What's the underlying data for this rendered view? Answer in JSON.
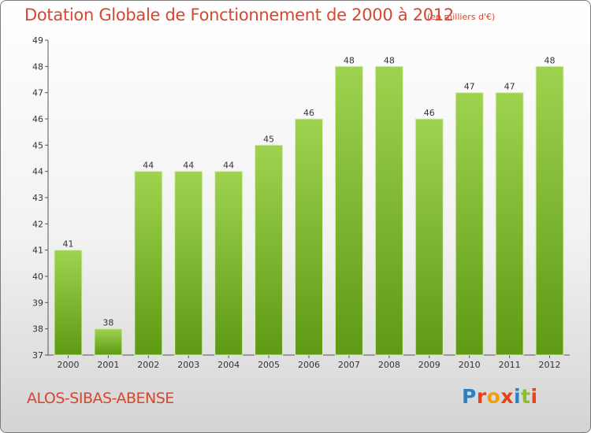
{
  "header": {
    "title": "Dotation Globale de Fonctionnement de 2000 à 2012",
    "units": "(en milliers d'€)"
  },
  "footer": {
    "commune": "ALOS-SIBAS-ABENSE",
    "logo_text": "Proxiti"
  },
  "colors": {
    "title": "#d7462f",
    "bar_top": "#9fd34f",
    "bar_bottom": "#5e9a14",
    "logo": [
      "#2f7fc1",
      "#e8411b",
      "#f2a000",
      "#e8411b",
      "#2f7fc1",
      "#8bbf2b",
      "#e8411b"
    ]
  },
  "chart_data": {
    "type": "bar",
    "title": "Dotation Globale de Fonctionnement de 2000 à 2012",
    "subtitle": "(en milliers d'€)",
    "categories": [
      "2000",
      "2001",
      "2002",
      "2003",
      "2004",
      "2005",
      "2006",
      "2007",
      "2008",
      "2009",
      "2010",
      "2011",
      "2012"
    ],
    "values": [
      41,
      38,
      44,
      44,
      44,
      45,
      46,
      48,
      48,
      46,
      47,
      47,
      48
    ],
    "ylim": [
      37,
      49
    ],
    "yticks": [
      37,
      38,
      39,
      40,
      41,
      42,
      43,
      44,
      45,
      46,
      47,
      48,
      49
    ],
    "grid": false,
    "data_labels": true
  }
}
